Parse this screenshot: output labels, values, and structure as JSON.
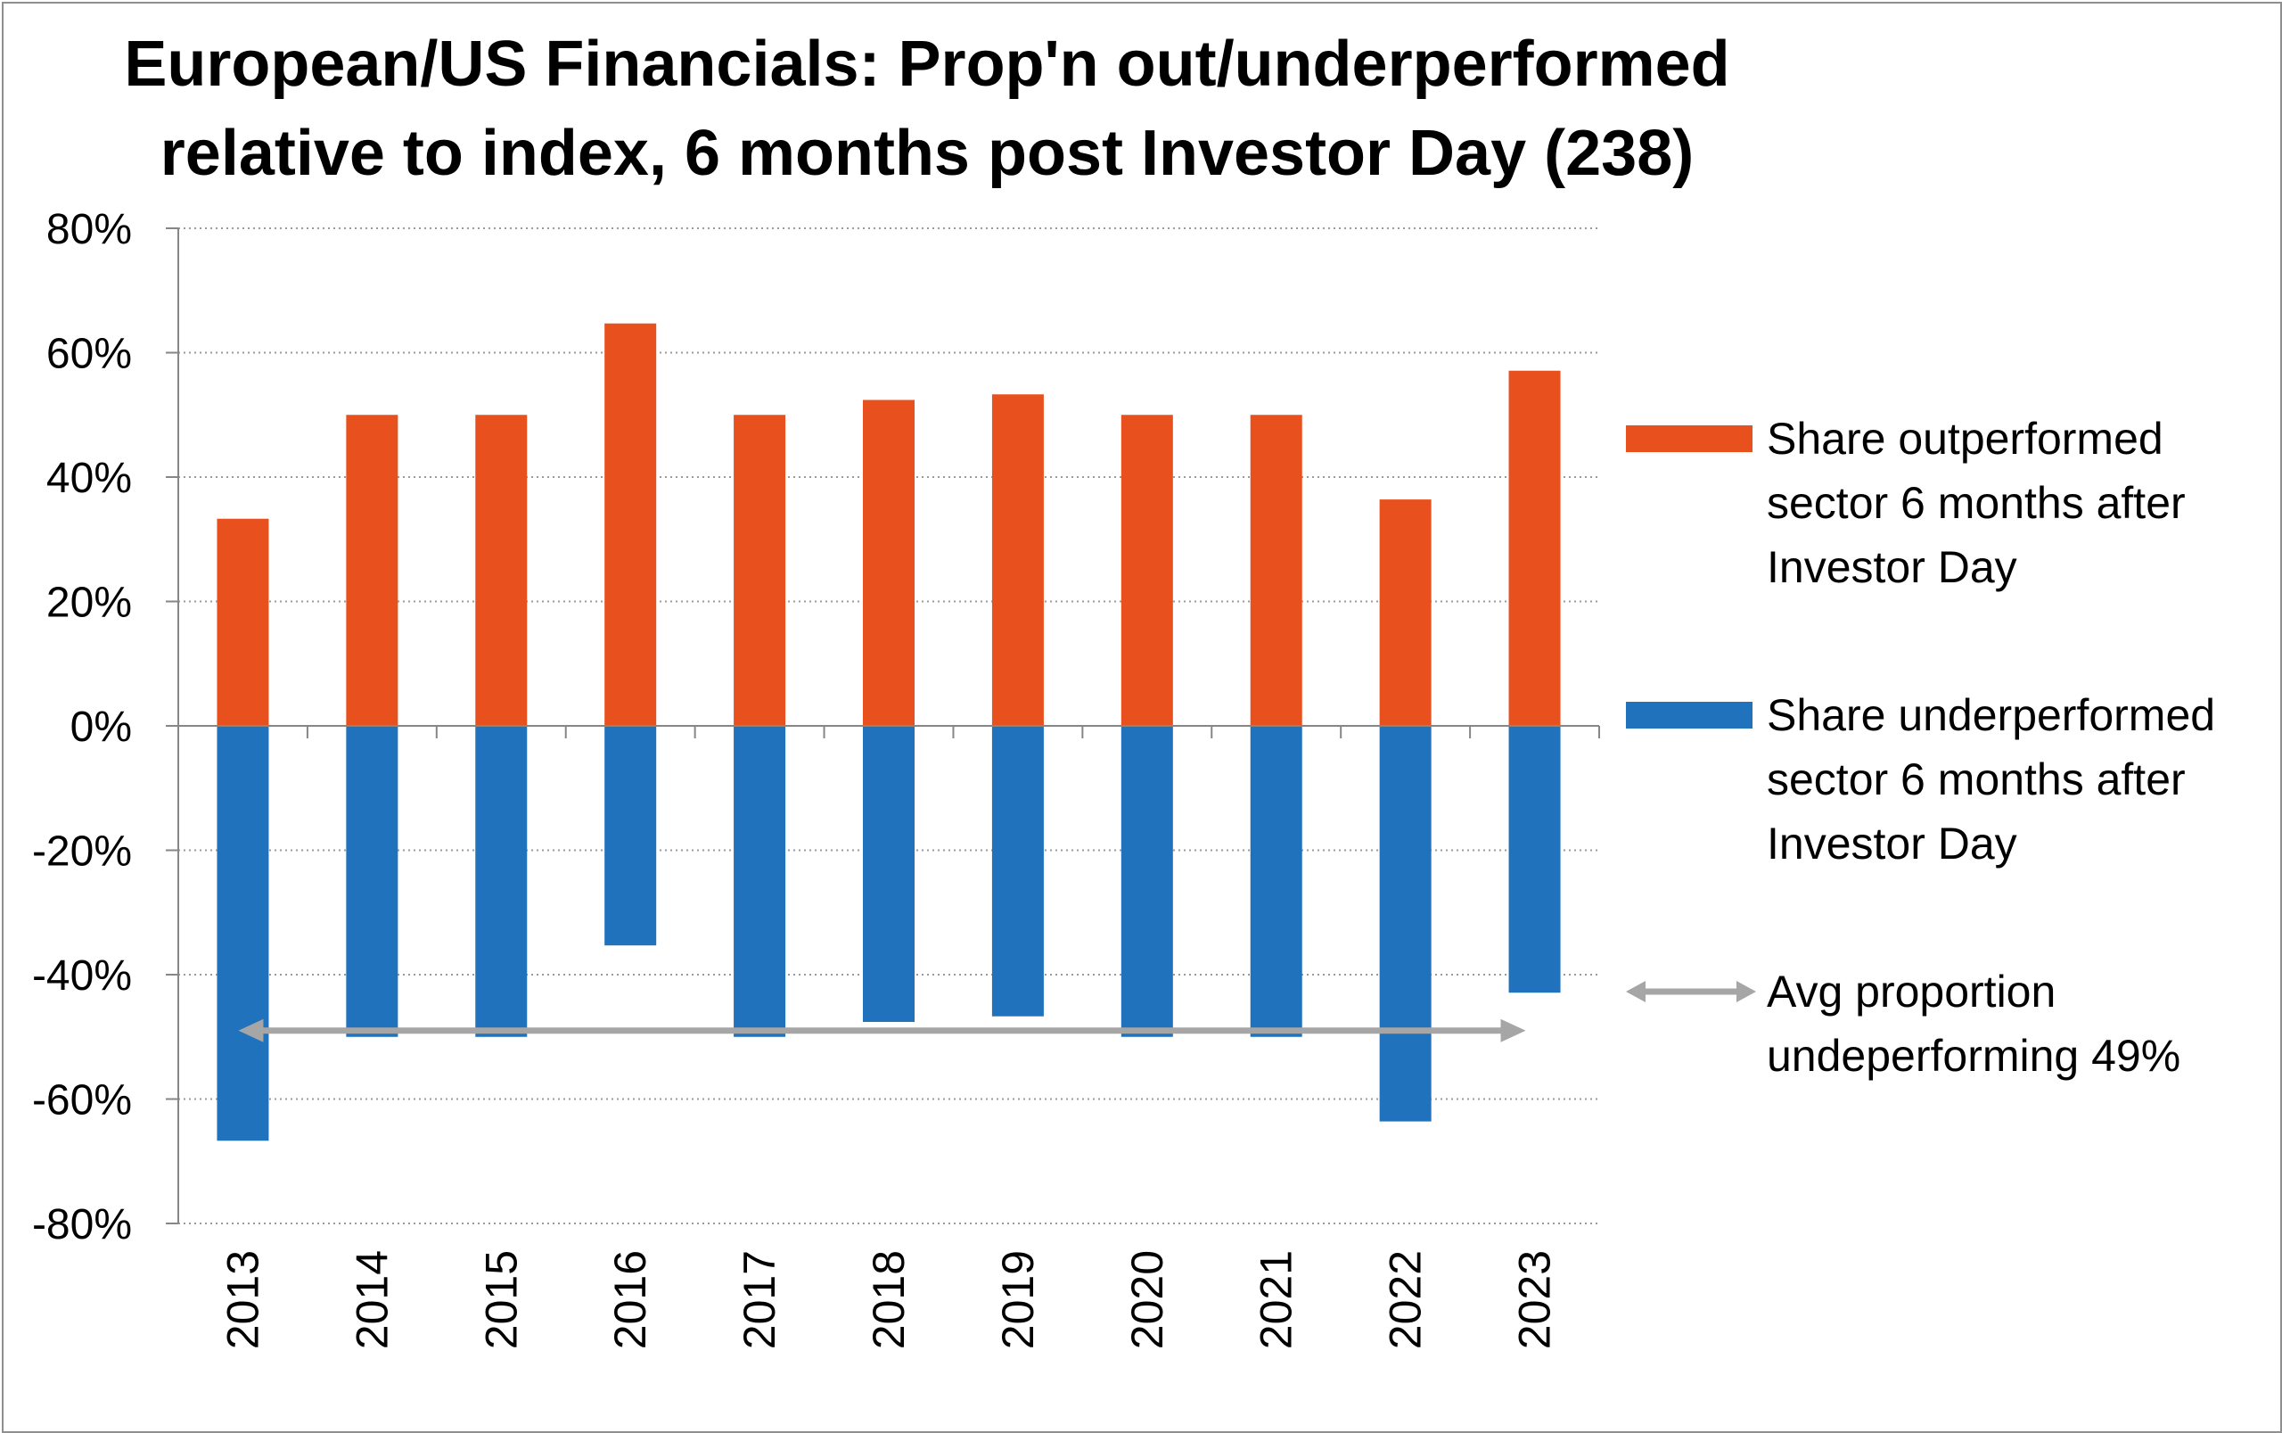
{
  "chart_data": {
    "type": "bar",
    "title": [
      "European/US Financials: Prop'n out/underperformed",
      "relative to index, 6 months post Investor Day (238)"
    ],
    "xlabel": "",
    "ylabel": "",
    "ylim": [
      -80,
      80
    ],
    "yticks": [
      "80%",
      "60%",
      "40%",
      "20%",
      "0%",
      "-20%",
      "-40%",
      "-60%",
      "-80%"
    ],
    "ytick_values": [
      80,
      60,
      40,
      20,
      0,
      -20,
      -40,
      -60,
      -80
    ],
    "grid": "horizontal dotted",
    "legend_position": "right",
    "categories": [
      "2013",
      "2014",
      "2015",
      "2016",
      "2017",
      "2018",
      "2019",
      "2020",
      "2021",
      "2022",
      "2023"
    ],
    "series": [
      {
        "name": [
          "Share outperformed",
          "sector 6 months after",
          "Investor Day"
        ],
        "color": "#e8511e",
        "values": [
          33.3,
          50,
          50,
          64.7,
          50,
          52.4,
          53.3,
          50,
          50,
          36.4,
          57.1
        ]
      },
      {
        "name": [
          "Share underperformed",
          "sector 6 months after",
          "Investor Day"
        ],
        "color": "#1f72bb",
        "values": [
          -66.7,
          -50,
          -50,
          -35.3,
          -50,
          -47.6,
          -46.7,
          -50,
          -50,
          -63.6,
          -42.9
        ]
      }
    ],
    "annotation": {
      "text": [
        "Avg proportion",
        "undeperforming 49%"
      ],
      "value": -49,
      "color": "#a6a6a6",
      "style": "double-headed arrow"
    }
  }
}
